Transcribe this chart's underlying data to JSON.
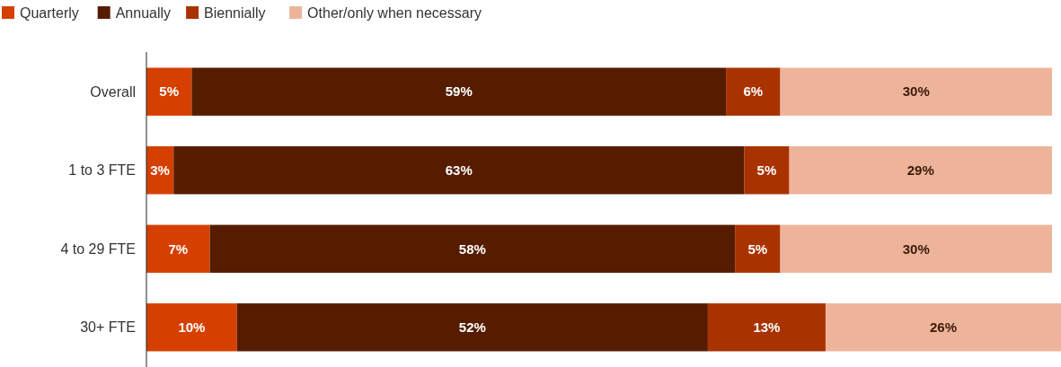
{
  "chart_data": {
    "type": "bar",
    "orientation": "horizontal",
    "stacked": true,
    "legend": "top left",
    "categories": [
      "Overall",
      "1 to 3 FTE",
      "4 to 29 FTE",
      "30+ FTE"
    ],
    "series": [
      {
        "name": "Quarterly",
        "color": "#d54000",
        "values": [
          5,
          3,
          7,
          10
        ],
        "value_labels": [
          "5%",
          "3%",
          "7%",
          "10%"
        ]
      },
      {
        "name": "Annually",
        "color": "#561c00",
        "values": [
          59,
          63,
          58,
          52
        ],
        "value_labels": [
          "59%",
          "63%",
          "58%",
          "52%"
        ]
      },
      {
        "name": "Biennially",
        "color": "#a93300",
        "values": [
          6,
          5,
          5,
          13
        ],
        "value_labels": [
          "6%",
          "5%",
          "5%",
          "13%"
        ]
      },
      {
        "name": "Other/only when necessary",
        "color": "#eeb49a",
        "values": [
          30,
          29,
          30,
          26
        ],
        "value_labels": [
          "30%",
          "29%",
          "30%",
          "26%"
        ]
      }
    ]
  }
}
